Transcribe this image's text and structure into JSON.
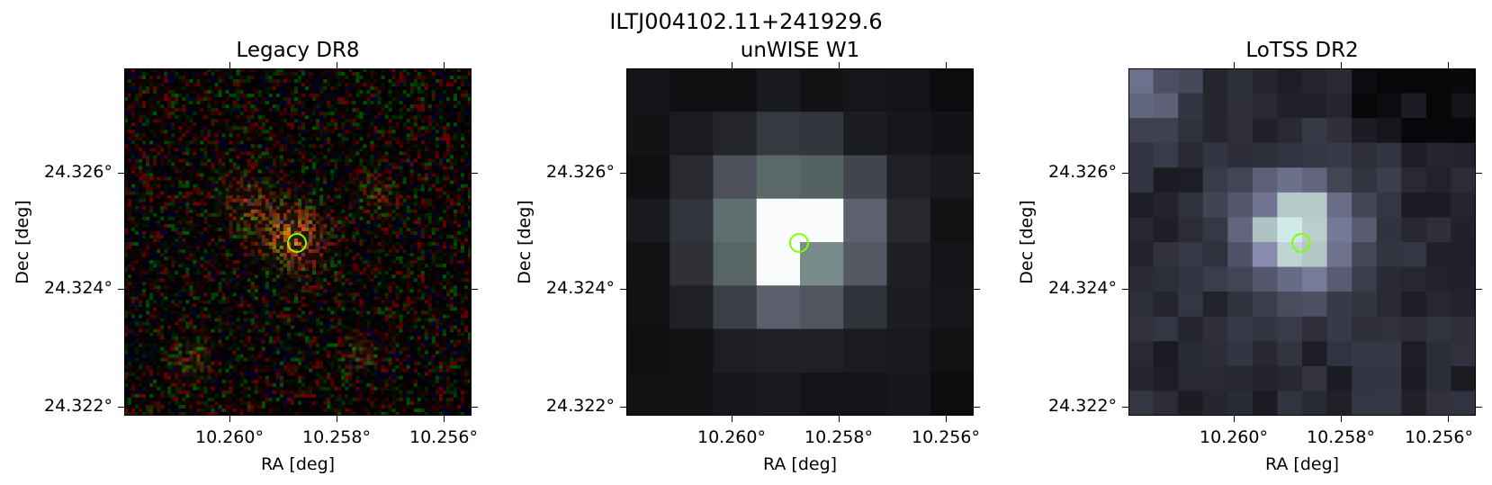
{
  "figure": {
    "title": "ILTJ004102.11+241929.6",
    "panels": [
      {
        "title": "Legacy DR8",
        "xlabel": "RA [deg]",
        "ylabel": "Dec [deg]"
      },
      {
        "title": "unWISE W1",
        "xlabel": "RA [deg]",
        "ylabel": "Dec [deg]"
      },
      {
        "title": "LoTSS DR2",
        "xlabel": "RA [deg]",
        "ylabel": "Dec [deg]"
      }
    ],
    "xticks": [
      "10.260°",
      "10.258°",
      "10.256°"
    ],
    "yticks": [
      "24.326°",
      "24.324°",
      "24.322°"
    ]
  },
  "colors": {
    "marker": "#7fff00"
  }
}
